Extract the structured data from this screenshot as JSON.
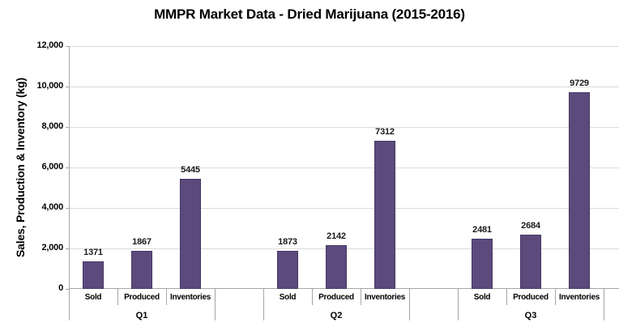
{
  "chart_data": {
    "type": "bar",
    "title": "MMPR Market Data - Dried Marijuana (2015-2016)",
    "xlabel": "",
    "ylabel": "Sales, Production & Inventory (kg)",
    "ylim": [
      0,
      12000
    ],
    "ytick_interval": 2000,
    "yticks": [
      0,
      2000,
      4000,
      6000,
      8000,
      10000,
      12000
    ],
    "ytick_labels": [
      "0",
      "2,000",
      "4,000",
      "6,000",
      "8,000",
      "10,000",
      "12,000"
    ],
    "grid": "horizontal",
    "legend_position": "none",
    "categories": [
      "Sold",
      "Produced",
      "Inventories"
    ],
    "groups": [
      {
        "label": "Q1",
        "values": [
          1371,
          1867,
          5445
        ]
      },
      {
        "label": "Q2",
        "values": [
          1873,
          2142,
          7312
        ]
      },
      {
        "label": "Q3",
        "values": [
          2481,
          2684,
          9729
        ]
      }
    ],
    "data_labels_shown": true,
    "colors": {
      "bar_fill": "#5C4A7D",
      "bar_border": "#453764",
      "gridline": "#DBDBDB",
      "axis_line": "#A6A6A6",
      "text": "#000000",
      "background": "#FFFFFF"
    }
  }
}
